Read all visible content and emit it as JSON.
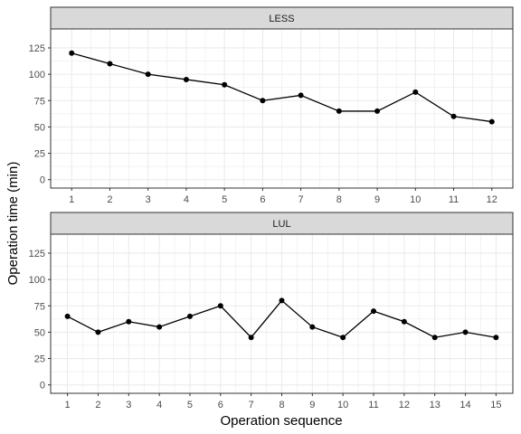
{
  "chart_data": {
    "type": "line",
    "xlabel": "Operation sequence",
    "ylabel": "Operation time (min)",
    "ylim": [
      -8,
      143
    ],
    "y_ticks": [
      0,
      25,
      50,
      75,
      100,
      125
    ],
    "grid": true,
    "colors": {
      "line": "#000000",
      "panel_border": "#333333",
      "grid": "#ebebeb",
      "strip_fill": "#d9d9d9"
    },
    "panels": [
      {
        "strip": "LESS",
        "x": [
          1,
          2,
          3,
          4,
          5,
          6,
          7,
          8,
          9,
          10,
          11,
          12
        ],
        "values": [
          120,
          110,
          100,
          95,
          90,
          75,
          80,
          65,
          65,
          83,
          60,
          55
        ]
      },
      {
        "strip": "LUL",
        "x": [
          1,
          2,
          3,
          4,
          5,
          6,
          7,
          8,
          9,
          10,
          11,
          12,
          13,
          14,
          15
        ],
        "values": [
          65,
          50,
          60,
          55,
          65,
          75,
          45,
          80,
          55,
          45,
          70,
          60,
          45,
          50,
          45
        ]
      }
    ]
  }
}
